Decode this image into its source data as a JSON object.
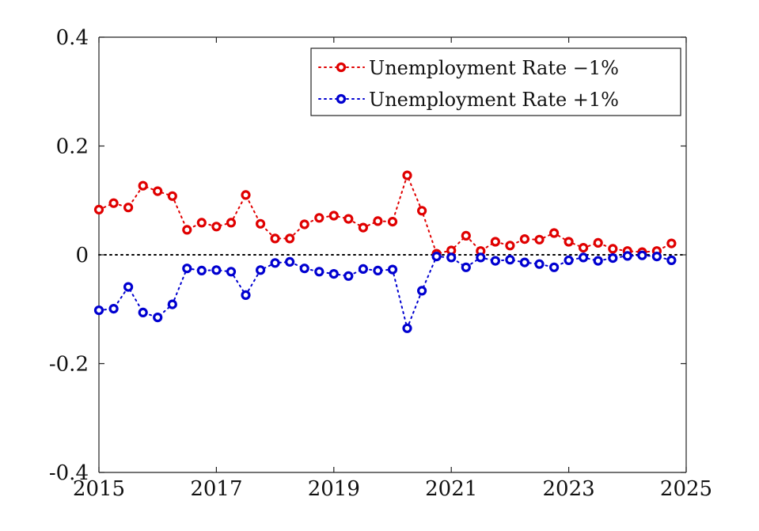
{
  "chart_data": {
    "type": "line",
    "title": "",
    "xlabel": "",
    "ylabel": "",
    "xlim": [
      2015,
      2025
    ],
    "ylim": [
      -0.4,
      0.4
    ],
    "xticks": [
      2015,
      2017,
      2019,
      2021,
      2023,
      2025
    ],
    "xtick_labels": [
      "2015",
      "2017",
      "2019",
      "2021",
      "2023",
      "2025"
    ],
    "yticks": [
      -0.4,
      -0.2,
      0,
      0.2,
      0.4
    ],
    "ytick_labels": [
      "-0.4",
      "-0.2",
      "0",
      "0.2",
      "0.4"
    ],
    "grid": false,
    "legend_location": "top-right",
    "reference_line": {
      "y": 0,
      "color": "#000000",
      "style": "dotted"
    },
    "x": [
      2015.0,
      2015.25,
      2015.5,
      2015.75,
      2016.0,
      2016.25,
      2016.5,
      2016.75,
      2017.0,
      2017.25,
      2017.5,
      2017.75,
      2018.0,
      2018.25,
      2018.5,
      2018.75,
      2019.0,
      2019.25,
      2019.5,
      2019.75,
      2020.0,
      2020.25,
      2020.5,
      2020.75,
      2021.0,
      2021.25,
      2021.5,
      2021.75,
      2022.0,
      2022.25,
      2022.5,
      2022.75,
      2023.0,
      2023.25,
      2023.5,
      2023.75,
      2024.0,
      2024.25,
      2024.5,
      2024.75
    ],
    "series": [
      {
        "name": "Unemployment Rate −1%",
        "color": "#e00000",
        "values": [
          0.083,
          0.095,
          0.087,
          0.127,
          0.117,
          0.108,
          0.046,
          0.059,
          0.052,
          0.059,
          0.11,
          0.057,
          0.03,
          0.03,
          0.056,
          0.068,
          0.072,
          0.066,
          0.05,
          0.062,
          0.061,
          0.146,
          0.081,
          0.002,
          0.008,
          0.035,
          0.007,
          0.024,
          0.017,
          0.029,
          0.028,
          0.04,
          0.024,
          0.013,
          0.022,
          0.011,
          0.007,
          0.005,
          0.007,
          0.021
        ]
      },
      {
        "name": "Unemployment Rate +1%",
        "color": "#0000d0",
        "values": [
          -0.102,
          -0.099,
          -0.059,
          -0.106,
          -0.115,
          -0.091,
          -0.025,
          -0.029,
          -0.028,
          -0.031,
          -0.074,
          -0.028,
          -0.015,
          -0.013,
          -0.025,
          -0.031,
          -0.035,
          -0.039,
          -0.026,
          -0.029,
          -0.027,
          -0.135,
          -0.066,
          -0.003,
          -0.005,
          -0.023,
          -0.005,
          -0.011,
          -0.009,
          -0.014,
          -0.017,
          -0.023,
          -0.01,
          -0.005,
          -0.011,
          -0.006,
          -0.002,
          -0.001,
          -0.003,
          -0.01
        ]
      }
    ]
  }
}
